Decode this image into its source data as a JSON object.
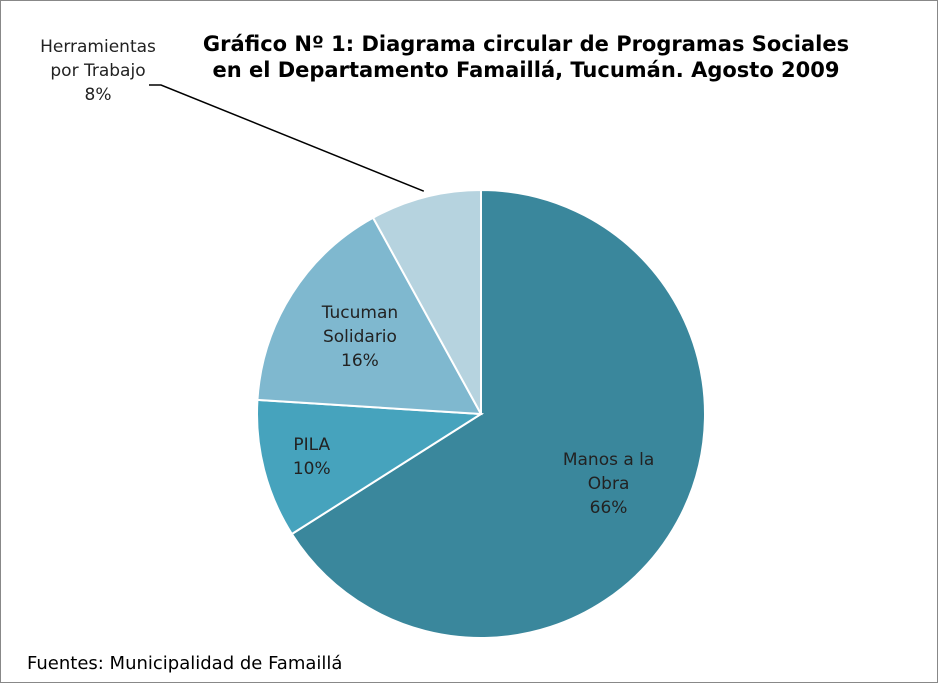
{
  "chart_data": {
    "type": "pie",
    "title": "Gráfico Nº 1: Diagrama circular de Programas Sociales en el Departamento Famaillá,  Tucumán. Agosto 2009",
    "categories": [
      "Manos a la Obra",
      "PILA",
      "Tucuman Solidario",
      "Herramientas por Trabajo"
    ],
    "values": [
      66,
      10,
      16,
      8
    ],
    "value_labels": [
      "66%",
      "10%",
      "16%",
      "8%"
    ],
    "colors": [
      "#3a879c",
      "#46a3bd",
      "#7fb8cf",
      "#b6d3df"
    ],
    "source": "Fuentes: Municipalidad de Famaillá"
  }
}
